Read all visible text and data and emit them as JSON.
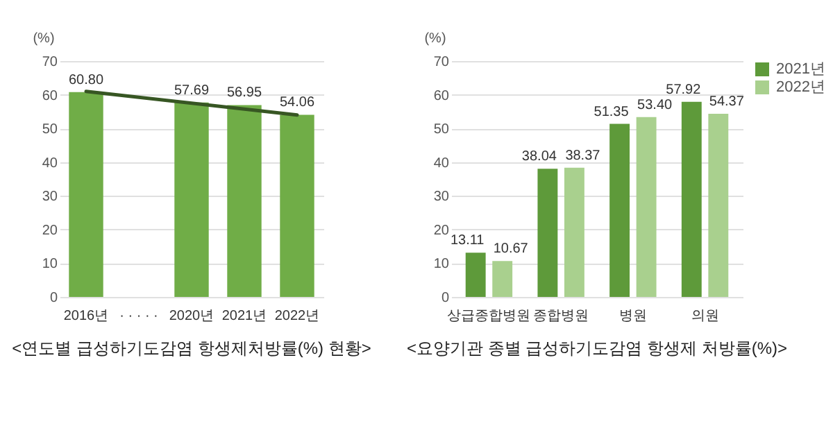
{
  "chart_data": [
    {
      "type": "bar",
      "title": "<연도별 급성하기도감염 항생제처방률(%) 현황>",
      "ylabel": "(%)",
      "categories": [
        "2016년",
        "· · · · ·",
        "2020년",
        "2021년",
        "2022년"
      ],
      "ylim": [
        0,
        70
      ],
      "yticks": [
        0,
        10,
        20,
        30,
        40,
        50,
        60,
        70
      ],
      "grid": "y",
      "series": [
        {
          "type": "bar",
          "color": "#70ad47",
          "values": [
            60.8,
            null,
            57.69,
            56.95,
            54.06
          ],
          "value_labels": [
            "60.80",
            null,
            "57.69",
            "56.95",
            "54.06"
          ]
        },
        {
          "type": "line",
          "color": "#375623",
          "x": [
            "2016년",
            "2022년"
          ],
          "values": [
            61,
            54
          ]
        }
      ]
    },
    {
      "type": "bar",
      "title": "<요양기관 종별 급성하기도감염 항생제 처방률(%)>",
      "ylabel": "(%)",
      "categories": [
        "상급종합병원",
        "종합병원",
        "병원",
        "의원"
      ],
      "ylim": [
        0,
        70
      ],
      "yticks": [
        0,
        10,
        20,
        30,
        40,
        50,
        60,
        70
      ],
      "grid": "y",
      "legend": "right",
      "series": [
        {
          "name": "2021년",
          "color": "#5e9a3a",
          "values": [
            13.11,
            38.04,
            51.35,
            57.92
          ],
          "value_labels": [
            "13.11",
            "38.04",
            "51.35",
            "57.92"
          ]
        },
        {
          "name": "2022년",
          "color": "#a9d08e",
          "values": [
            10.67,
            38.37,
            53.4,
            54.37
          ],
          "value_labels": [
            "10.67",
            "38.37",
            "53.40",
            "54.37"
          ]
        }
      ]
    }
  ]
}
